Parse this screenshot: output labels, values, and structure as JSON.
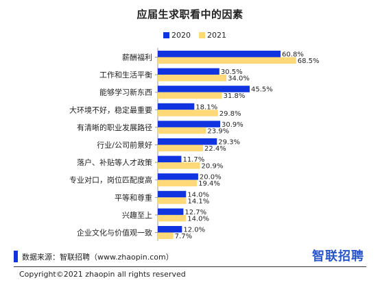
{
  "colors": {
    "series_2020": "#1034e0",
    "series_2021": "#ffd978",
    "logo": "#2855c8"
  },
  "chart_data": {
    "type": "bar",
    "orientation": "horizontal",
    "title": "应届生求职看中的因素",
    "categories": [
      "薪酬福利",
      "工作和生活平衡",
      "能够学习新东西",
      "大环境不好，稳定最重要",
      "有清晰的职业发展路径",
      "行业/公司前景好",
      "落户、补贴等人才政策",
      "专业对口，岗位匹配度高",
      "平等和尊重",
      "兴趣至上",
      "企业文化与价值观一致"
    ],
    "series": [
      {
        "name": "2020",
        "values": [
          60.8,
          30.5,
          45.5,
          18.1,
          30.9,
          29.3,
          11.7,
          20.0,
          14.0,
          12.7,
          12.0
        ],
        "labels": [
          "60.8%",
          "30.5%",
          "45.5%",
          "18.1%",
          "30.9%",
          "29.3%",
          "11.7%",
          "20.0%",
          "14.0%",
          "12.7%",
          "12.0%"
        ]
      },
      {
        "name": "2021",
        "values": [
          68.5,
          34.0,
          31.8,
          29.8,
          23.9,
          22.4,
          20.9,
          19.4,
          14.1,
          14.0,
          7.7
        ],
        "labels": [
          "68.5%",
          "34.0%",
          "31.8%",
          "29.8%",
          "23.9%",
          "22.4%",
          "20.9%",
          "19.4%",
          "14.1%",
          "14.0%",
          "7.7%"
        ]
      }
    ],
    "xlim": [
      0,
      100
    ],
    "legend_position": "top",
    "grid": false
  },
  "footer": {
    "source": "数据来源：智联招聘（www.zhaopin.com）",
    "logo": "智联招聘",
    "copyright": "Copyright©2021 zhaopin all rights reserved"
  }
}
